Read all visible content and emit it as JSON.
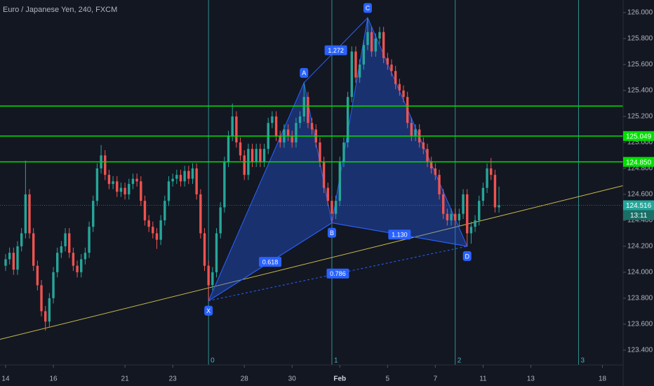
{
  "chart_data": {
    "type": "candlestick",
    "title": "Euro / Japanese Yen, 240, FXCM",
    "up_color": "#26a69a",
    "down_color": "#ef5350",
    "xlim": [
      -1.41,
      155.2
    ],
    "ylim": [
      123.286,
      126.097
    ],
    "xticks": [
      {
        "value": 0,
        "label": "14"
      },
      {
        "value": 12,
        "label": "16"
      },
      {
        "value": 30,
        "label": "21"
      },
      {
        "value": 42,
        "label": "23"
      },
      {
        "value": 60,
        "label": "28"
      },
      {
        "value": 72,
        "label": "30"
      },
      {
        "value": 84,
        "label": "Feb"
      },
      {
        "value": 96,
        "label": "5"
      },
      {
        "value": 108,
        "label": "7"
      },
      {
        "value": 120,
        "label": "11"
      },
      {
        "value": 132,
        "label": "13"
      },
      {
        "value": 150,
        "label": "18"
      }
    ],
    "yticks": [
      {
        "value": 123.4,
        "label": "123.400"
      },
      {
        "value": 123.6,
        "label": "123.600"
      },
      {
        "value": 123.8,
        "label": "123.800"
      },
      {
        "value": 124.0,
        "label": "124.000"
      },
      {
        "value": 124.2,
        "label": "124.200"
      },
      {
        "value": 124.4,
        "label": "124.400"
      },
      {
        "value": 124.6,
        "label": "124.600"
      },
      {
        "value": 124.8,
        "label": "124.800"
      },
      {
        "value": 125.0,
        "label": "125.000"
      },
      {
        "value": 125.2,
        "label": "125.200"
      },
      {
        "value": 125.4,
        "label": "125.400"
      },
      {
        "value": 125.6,
        "label": "125.600"
      },
      {
        "value": 125.8,
        "label": "125.800"
      },
      {
        "value": 126.0,
        "label": "126.000"
      }
    ],
    "ohlc": [
      [
        124.05,
        124.14,
        124.01,
        124.1
      ],
      [
        124.1,
        124.19,
        124.06,
        124.15
      ],
      [
        124.15,
        124.19,
        123.98,
        124.02
      ],
      [
        124.02,
        124.24,
        123.98,
        124.2
      ],
      [
        124.2,
        124.34,
        124.16,
        124.3
      ],
      [
        124.3,
        124.86,
        124.26,
        124.6
      ],
      [
        124.6,
        124.64,
        124.26,
        124.3
      ],
      [
        124.3,
        124.34,
        124.01,
        124.05
      ],
      [
        124.05,
        124.09,
        123.86,
        123.9
      ],
      [
        123.9,
        123.94,
        123.66,
        123.7
      ],
      [
        123.7,
        123.74,
        123.55,
        123.62
      ],
      [
        123.62,
        123.84,
        123.58,
        123.8
      ],
      [
        123.8,
        124.04,
        123.76,
        124.0
      ],
      [
        124.0,
        124.19,
        123.96,
        124.15
      ],
      [
        124.15,
        124.24,
        124.11,
        124.2
      ],
      [
        124.2,
        124.34,
        124.16,
        124.3
      ],
      [
        124.3,
        124.34,
        124.11,
        124.15
      ],
      [
        124.15,
        124.19,
        124.01,
        124.05
      ],
      [
        124.05,
        124.09,
        123.96,
        124.0
      ],
      [
        124.0,
        124.14,
        123.96,
        124.1
      ],
      [
        124.1,
        124.19,
        124.06,
        124.15
      ],
      [
        124.15,
        124.39,
        124.11,
        124.35
      ],
      [
        124.35,
        124.59,
        124.31,
        124.55
      ],
      [
        124.55,
        124.84,
        124.51,
        124.8
      ],
      [
        124.8,
        124.98,
        124.76,
        124.9
      ],
      [
        124.9,
        124.94,
        124.71,
        124.75
      ],
      [
        124.75,
        124.79,
        124.64,
        124.68
      ],
      [
        124.68,
        124.74,
        124.64,
        124.7
      ],
      [
        124.7,
        124.74,
        124.58,
        124.62
      ],
      [
        124.62,
        124.69,
        124.58,
        124.65
      ],
      [
        124.65,
        124.69,
        124.56,
        124.6
      ],
      [
        124.6,
        124.72,
        124.56,
        124.68
      ],
      [
        124.68,
        124.76,
        124.64,
        124.72
      ],
      [
        124.72,
        124.76,
        124.66,
        124.7
      ],
      [
        124.7,
        124.74,
        124.51,
        124.55
      ],
      [
        124.55,
        124.59,
        124.36,
        124.4
      ],
      [
        124.4,
        124.44,
        124.31,
        124.35
      ],
      [
        124.35,
        124.39,
        124.26,
        124.3
      ],
      [
        124.3,
        124.34,
        124.18,
        124.25
      ],
      [
        124.25,
        124.44,
        124.21,
        124.4
      ],
      [
        124.4,
        124.59,
        124.36,
        124.55
      ],
      [
        124.55,
        124.74,
        124.51,
        124.7
      ],
      [
        124.7,
        124.76,
        124.66,
        124.72
      ],
      [
        124.72,
        124.79,
        124.68,
        124.75
      ],
      [
        124.75,
        124.79,
        124.66,
        124.7
      ],
      [
        124.7,
        124.82,
        124.66,
        124.78
      ],
      [
        124.78,
        124.82,
        124.68,
        124.72
      ],
      [
        124.72,
        124.84,
        124.68,
        124.8
      ],
      [
        124.8,
        124.84,
        124.56,
        124.6
      ],
      [
        124.6,
        124.64,
        124.26,
        124.3
      ],
      [
        124.3,
        124.34,
        124.01,
        124.05
      ],
      [
        124.05,
        124.09,
        123.78,
        123.9
      ],
      [
        123.9,
        124.04,
        123.86,
        124.0
      ],
      [
        124.0,
        124.34,
        123.96,
        124.3
      ],
      [
        124.3,
        124.54,
        124.26,
        124.5
      ],
      [
        124.5,
        124.89,
        124.46,
        124.85
      ],
      [
        124.85,
        125.09,
        124.81,
        125.05
      ],
      [
        125.05,
        125.3,
        125.01,
        125.2
      ],
      [
        125.2,
        125.24,
        124.96,
        125.0
      ],
      [
        125.0,
        125.04,
        124.86,
        124.9
      ],
      [
        124.9,
        124.94,
        124.71,
        124.75
      ],
      [
        124.75,
        124.99,
        124.71,
        124.95
      ],
      [
        124.95,
        124.99,
        124.81,
        124.85
      ],
      [
        124.85,
        124.99,
        124.81,
        124.95
      ],
      [
        124.95,
        124.99,
        124.81,
        124.85
      ],
      [
        124.85,
        124.99,
        124.81,
        124.95
      ],
      [
        124.95,
        125.19,
        124.91,
        125.15
      ],
      [
        125.15,
        125.24,
        125.11,
        125.2
      ],
      [
        125.2,
        125.24,
        125.01,
        125.05
      ],
      [
        125.05,
        125.09,
        124.96,
        125.0
      ],
      [
        125.0,
        125.14,
        124.96,
        125.1
      ],
      [
        125.1,
        125.14,
        125.01,
        125.05
      ],
      [
        125.05,
        125.09,
        124.96,
        125.0
      ],
      [
        125.0,
        125.19,
        124.96,
        125.15
      ],
      [
        125.15,
        125.24,
        125.11,
        125.2
      ],
      [
        125.2,
        125.46,
        125.16,
        125.35
      ],
      [
        125.35,
        125.39,
        125.11,
        125.15
      ],
      [
        125.15,
        125.19,
        125.06,
        125.1
      ],
      [
        125.1,
        125.14,
        124.96,
        125.0
      ],
      [
        125.0,
        125.04,
        124.81,
        124.85
      ],
      [
        124.85,
        124.89,
        124.61,
        124.65
      ],
      [
        124.65,
        124.69,
        124.51,
        124.55
      ],
      [
        124.55,
        124.59,
        124.38,
        124.45
      ],
      [
        124.45,
        124.59,
        124.41,
        124.55
      ],
      [
        124.55,
        124.89,
        124.51,
        124.85
      ],
      [
        124.85,
        125.04,
        124.81,
        125.0
      ],
      [
        125.0,
        125.39,
        124.96,
        125.35
      ],
      [
        125.35,
        125.74,
        125.31,
        125.7
      ],
      [
        125.7,
        125.74,
        125.46,
        125.5
      ],
      [
        125.5,
        125.64,
        125.46,
        125.6
      ],
      [
        125.6,
        125.79,
        125.56,
        125.75
      ],
      [
        125.75,
        125.96,
        125.71,
        125.85
      ],
      [
        125.85,
        125.89,
        125.66,
        125.7
      ],
      [
        125.7,
        125.84,
        125.66,
        125.8
      ],
      [
        125.8,
        125.89,
        125.76,
        125.85
      ],
      [
        125.85,
        125.89,
        125.61,
        125.65
      ],
      [
        125.65,
        125.69,
        125.56,
        125.6
      ],
      [
        125.6,
        125.64,
        125.51,
        125.55
      ],
      [
        125.55,
        125.59,
        125.41,
        125.45
      ],
      [
        125.45,
        125.49,
        125.36,
        125.4
      ],
      [
        125.4,
        125.44,
        125.31,
        125.35
      ],
      [
        125.35,
        125.39,
        125.11,
        125.15
      ],
      [
        125.15,
        125.19,
        125.01,
        125.05
      ],
      [
        125.05,
        125.14,
        125.01,
        125.1
      ],
      [
        125.1,
        125.14,
        124.96,
        125.0
      ],
      [
        125.0,
        125.04,
        124.91,
        124.95
      ],
      [
        124.95,
        124.99,
        124.81,
        124.85
      ],
      [
        124.85,
        124.89,
        124.76,
        124.8
      ],
      [
        124.8,
        124.84,
        124.71,
        124.75
      ],
      [
        124.75,
        124.79,
        124.56,
        124.6
      ],
      [
        124.6,
        124.64,
        124.41,
        124.45
      ],
      [
        124.45,
        124.49,
        124.36,
        124.4
      ],
      [
        124.4,
        124.49,
        124.36,
        124.45
      ],
      [
        124.45,
        124.49,
        124.36,
        124.4
      ],
      [
        124.4,
        124.49,
        124.36,
        124.45
      ],
      [
        124.45,
        124.64,
        124.41,
        124.6
      ],
      [
        124.6,
        124.64,
        124.2,
        124.3
      ],
      [
        124.3,
        124.39,
        124.22,
        124.35
      ],
      [
        124.35,
        124.44,
        124.31,
        124.4
      ],
      [
        124.4,
        124.59,
        124.36,
        124.55
      ],
      [
        124.55,
        124.69,
        124.51,
        124.65
      ],
      [
        124.65,
        124.84,
        124.61,
        124.8
      ],
      [
        124.8,
        124.88,
        124.71,
        124.75
      ],
      [
        124.75,
        124.79,
        124.46,
        124.5
      ],
      [
        124.5,
        124.66,
        124.46,
        124.516
      ]
    ],
    "hlines": [
      {
        "value": 125.28,
        "color": "#00e000"
      },
      {
        "value": 125.049,
        "label": "125.049",
        "color": "#00e000"
      },
      {
        "value": 124.85,
        "label": "124.850",
        "color": "#00e000"
      }
    ],
    "last_price": 124.516,
    "countdown": "13:11",
    "vlines": [
      {
        "x": 51,
        "label": "0"
      },
      {
        "x": 82,
        "label": "1"
      },
      {
        "x": 113,
        "label": "2"
      },
      {
        "x": 144,
        "label": "3"
      }
    ],
    "trendline": {
      "x": [
        -1.41,
        155.2
      ],
      "y": [
        123.483,
        124.667
      ],
      "color": "#c8b84a"
    },
    "pattern": {
      "color": "#2962ff",
      "points": [
        {
          "label": "X",
          "x": 51,
          "y": 123.78
        },
        {
          "label": "A",
          "x": 75,
          "y": 125.46
        },
        {
          "label": "B",
          "x": 82,
          "y": 124.38
        },
        {
          "label": "C",
          "x": 91,
          "y": 125.96
        },
        {
          "label": "D",
          "x": 116,
          "y": 124.2
        }
      ],
      "legs": [
        {
          "from": "X",
          "to": "B",
          "label": "0.618",
          "style": "solid"
        },
        {
          "from": "A",
          "to": "C",
          "label": "1.272",
          "style": "solid"
        },
        {
          "from": "B",
          "to": "D",
          "label": "1.130",
          "style": "solid"
        },
        {
          "from": "X",
          "to": "D",
          "label": "0.786",
          "style": "dashed"
        }
      ]
    }
  }
}
